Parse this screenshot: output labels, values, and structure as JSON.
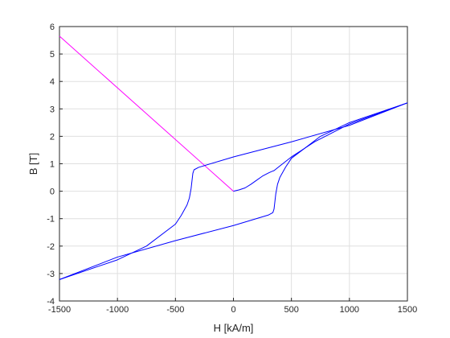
{
  "chart_data": {
    "type": "line",
    "xlabel": "H [kA/m]",
    "ylabel": "B [T]",
    "xlim": [
      -1500,
      1500
    ],
    "ylim": [
      -4,
      6
    ],
    "xticks": [
      "-1500",
      "-1000",
      "-500",
      "0",
      "500",
      "1000",
      "1500"
    ],
    "yticks": [
      "-4",
      "-3",
      "-2",
      "-1",
      "0",
      "1",
      "2",
      "3",
      "4",
      "5",
      "6"
    ],
    "grid": true,
    "colors": {
      "axes": "#262626",
      "grid": "#dfdfdf",
      "recoil_line": "#ff00ff",
      "hysteresis": "#0000ff"
    },
    "series": [
      {
        "color": "#ff00ff",
        "x": [
          -1500,
          0
        ],
        "y": [
          5.65,
          0.0
        ]
      },
      {
        "color": "#0000ff",
        "x": [
          0,
          50,
          100,
          150,
          200,
          250,
          300,
          330,
          350,
          400,
          500,
          700,
          1000,
          1500
        ],
        "y": [
          0.0,
          0.05,
          0.12,
          0.25,
          0.4,
          0.55,
          0.66,
          0.72,
          0.75,
          0.92,
          1.25,
          1.8,
          2.45,
          3.22
        ]
      },
      {
        "color": "#0000ff",
        "x": [
          1500,
          1000,
          500,
          0,
          -300,
          -340,
          -350,
          -365,
          -380,
          -400,
          -450,
          -500,
          -750,
          -1000,
          -1500
        ],
        "y": [
          3.22,
          2.4,
          1.8,
          1.25,
          0.87,
          0.78,
          0.65,
          0.1,
          -0.25,
          -0.5,
          -0.88,
          -1.2,
          -2.0,
          -2.5,
          -3.22
        ]
      },
      {
        "color": "#0000ff",
        "x": [
          -1500,
          -1000,
          -500,
          0,
          300,
          340,
          350,
          365,
          380,
          400,
          450,
          500,
          750,
          1000,
          1500
        ],
        "y": [
          -3.22,
          -2.4,
          -1.8,
          -1.25,
          -0.87,
          -0.78,
          -0.65,
          -0.1,
          0.25,
          0.5,
          0.88,
          1.2,
          2.0,
          2.5,
          3.22
        ]
      }
    ]
  }
}
